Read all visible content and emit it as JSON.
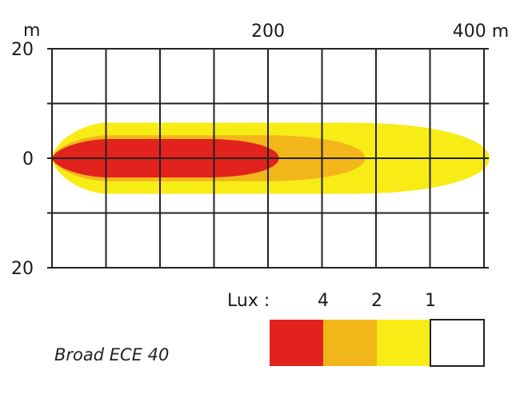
{
  "chart_data": {
    "type": "heatmap",
    "title": "Broad ECE 40",
    "x_axis": {
      "unit": "m",
      "range": [
        0,
        400
      ],
      "tick_labels": [
        {
          "value": 200,
          "label": "200"
        },
        {
          "value": 400,
          "label": "400 m"
        }
      ],
      "grid_step": 50
    },
    "y_axis": {
      "unit": "m",
      "range": [
        -20,
        20
      ],
      "tick_labels": [
        {
          "value": 20,
          "label": "20"
        },
        {
          "value": 0,
          "label": "0"
        },
        {
          "value": -20,
          "label": "20"
        }
      ],
      "grid_step": 10
    },
    "grid": true,
    "beam_zones": [
      {
        "lux": "1",
        "color": "#F7EC16",
        "reach_m": 405,
        "half_width_m": 6.5
      },
      {
        "lux": "2",
        "color": "#F2B61A",
        "reach_m": 290,
        "half_width_m": 4.2
      },
      {
        "lux": "4",
        "color": "#E2221C",
        "reach_m": 210,
        "half_width_m": 3.5
      }
    ],
    "legend": {
      "title": "Lux :",
      "placement": "bottom-right",
      "items": [
        {
          "label": "4",
          "color": "#E2221C"
        },
        {
          "label": "2",
          "color": "#F2B61A"
        },
        {
          "label": "1",
          "color": "#F7EC16"
        },
        {
          "label": "",
          "color": "#FFFFFF"
        }
      ]
    }
  }
}
